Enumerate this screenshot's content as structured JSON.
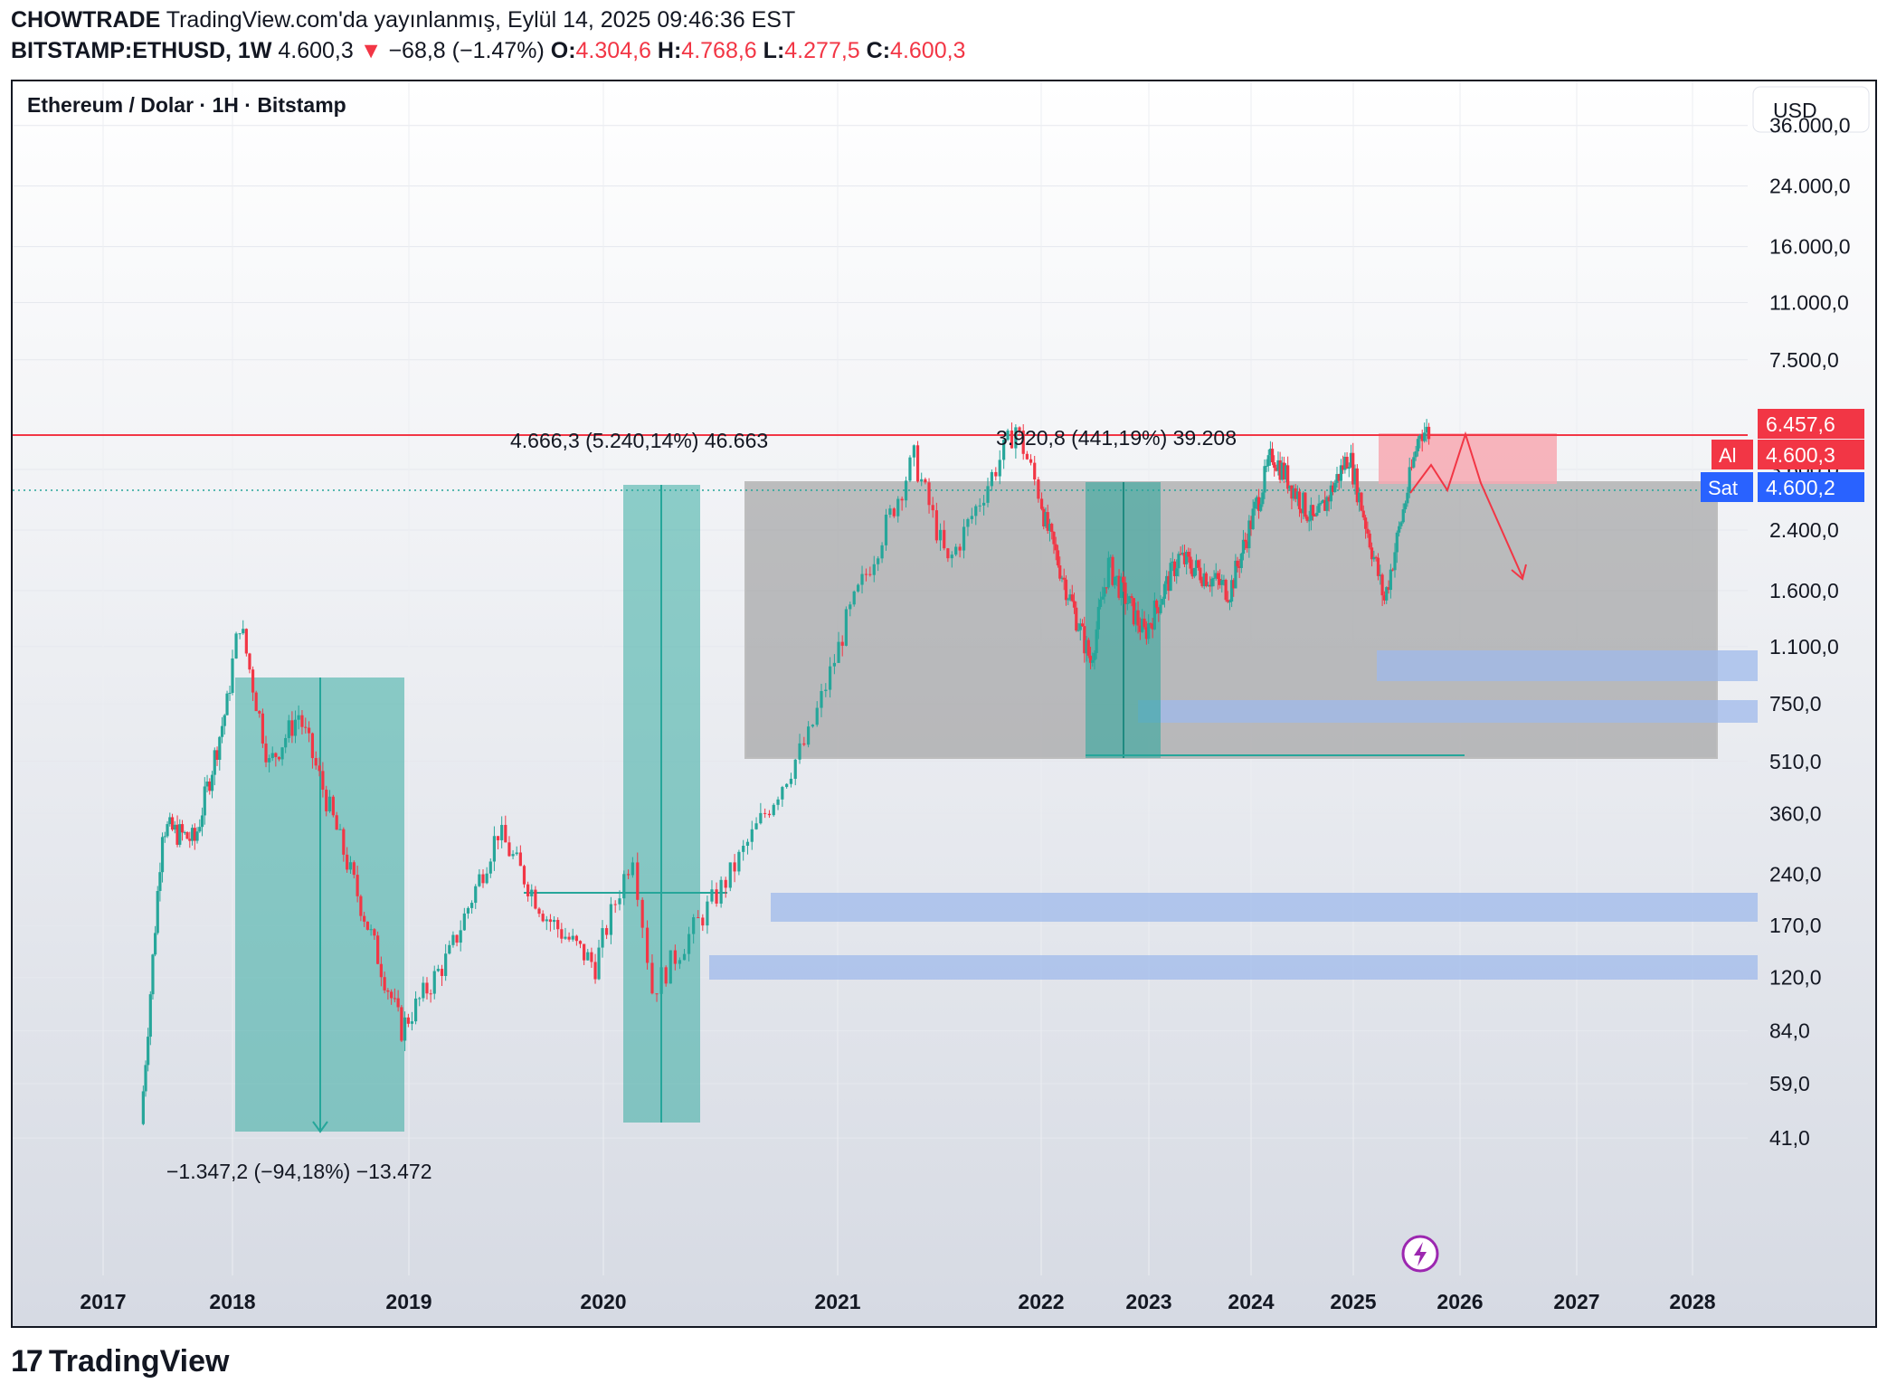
{
  "header": {
    "author": "CHOWTRADE",
    "published": "TradingView.com'da yayınlanmış, Eylül 14, 2025 09:46:36 EST",
    "symbol": "BITSTAMP:ETHUSD, 1W",
    "last": "4.600,3",
    "arrow": "▼",
    "change": "−68,8 (−1.47%)",
    "o_label": "O:",
    "o": "4.304,6",
    "h_label": "H:",
    "h": "4.768,6",
    "l_label": "L:",
    "l": "4.277,5",
    "c_label": "C:",
    "c": "4.600,3"
  },
  "chart_title": "Ethereum / Dolar · 1H · Bitstamp",
  "currency_button": "USD",
  "price_tags": {
    "resistance": "6.457,6",
    "buy_label": "Al",
    "buy": "4.600,3",
    "sell_label": "Sat",
    "sell": "4.600,2"
  },
  "measure_labels": {
    "drop_2018": "−1.347,2 (−94,18%) −13.472",
    "rise_2020": "4.666,3 (5.240,14%) 46.663",
    "rise_2022": "3.920,8 (441,19%) 39.208"
  },
  "footer": {
    "brand": "TradingView"
  },
  "colors": {
    "up": "#26a69a",
    "down": "#f23645",
    "range_box": "#9e9e9e",
    "measure_box": "#26a69a",
    "demand_zone": "#9fb9eb",
    "supply_zone": "#f7a8b1"
  },
  "chart_data": {
    "type": "candlestick",
    "symbol": "ETHUSD",
    "interval": "1W",
    "yscale": "log",
    "y_ticks": [
      "36.000,0",
      "24.000,0",
      "16.000,0",
      "11.000,0",
      "7.500,0",
      "3.600,0",
      "2.400,0",
      "1.600,0",
      "1.100,0",
      "750,0",
      "510,0",
      "360,0",
      "240,0",
      "170,0",
      "120,0",
      "84,0",
      "59,0",
      "41,0"
    ],
    "x_ticks": [
      "2017",
      "2018",
      "2019",
      "2020",
      "2021",
      "2022",
      "2023",
      "2024",
      "2025",
      "2026",
      "2027",
      "2028"
    ],
    "approx_close_path": [
      {
        "d": "2017-04",
        "v": 45
      },
      {
        "d": "2017-06",
        "v": 330
      },
      {
        "d": "2017-09",
        "v": 300
      },
      {
        "d": "2017-12",
        "v": 750
      },
      {
        "d": "2018-01",
        "v": 1300
      },
      {
        "d": "2018-03",
        "v": 500
      },
      {
        "d": "2018-05",
        "v": 700
      },
      {
        "d": "2018-09",
        "v": 210
      },
      {
        "d": "2018-12",
        "v": 85
      },
      {
        "d": "2019-03",
        "v": 140
      },
      {
        "d": "2019-06",
        "v": 320
      },
      {
        "d": "2019-09",
        "v": 180
      },
      {
        "d": "2019-12",
        "v": 130
      },
      {
        "d": "2020-02",
        "v": 280
      },
      {
        "d": "2020-03",
        "v": 110
      },
      {
        "d": "2020-07",
        "v": 240
      },
      {
        "d": "2020-09",
        "v": 380
      },
      {
        "d": "2020-11",
        "v": 600
      },
      {
        "d": "2021-01",
        "v": 1300
      },
      {
        "d": "2021-05",
        "v": 3900
      },
      {
        "d": "2021-07",
        "v": 1900
      },
      {
        "d": "2021-11",
        "v": 4800
      },
      {
        "d": "2022-01",
        "v": 2500
      },
      {
        "d": "2022-06",
        "v": 1000
      },
      {
        "d": "2022-08",
        "v": 1900
      },
      {
        "d": "2022-12",
        "v": 1200
      },
      {
        "d": "2023-04",
        "v": 2000
      },
      {
        "d": "2023-10",
        "v": 1600
      },
      {
        "d": "2024-03",
        "v": 4000
      },
      {
        "d": "2024-08",
        "v": 2500
      },
      {
        "d": "2024-12",
        "v": 4000
      },
      {
        "d": "2025-04",
        "v": 1500
      },
      {
        "d": "2025-08",
        "v": 4700
      },
      {
        "d": "2025-09",
        "v": 4600
      }
    ],
    "levels": {
      "resistance": 6457.6,
      "last": 4600.3
    },
    "zones": {
      "range_box": [
        900,
        4700
      ],
      "demand": [
        [
          1380,
          1620
        ],
        [
          1030,
          1160
        ],
        [
          335,
          385
        ],
        [
          220,
          250
        ]
      ],
      "supply": [
        4700,
        6457.6
      ]
    }
  }
}
